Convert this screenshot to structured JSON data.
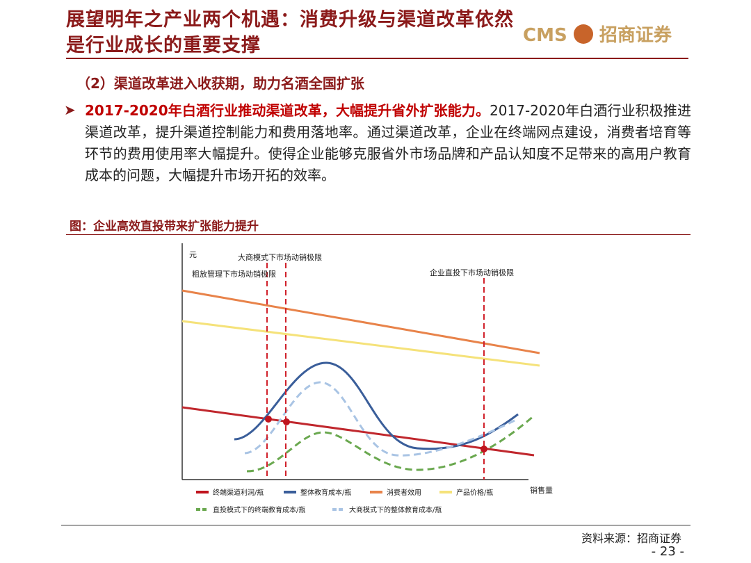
{
  "header": {
    "title_lines": [
      "展望明年之产业两个机遇：消费升级与渠道改革依然",
      "是行业成长的重要支撑"
    ],
    "logo_cms": "CMS",
    "logo_name": "招商证券"
  },
  "section": "（2）渠道改革进入收获期，助力名酒全国扩张",
  "bullet": {
    "bold": "2017-2020年白酒行业推动渠道改革，大幅提升省外扩张能力。",
    "text": "2017-2020年白酒行业积极推进渠道改革，提升渠道控制能力和费用落地率。通过渠道改革，企业在终端网点建设，消费者培育等环节的费用使用率大幅提升。使得企业能够克服省外市场品牌和产品认知度不足带来的高用户教育成本的问题，大幅提升市场开拓的效率。"
  },
  "figure": {
    "caption": "图：企业高效直投带来扩张能力提升",
    "y_label": "元",
    "x_label": "销售量",
    "annotations": [
      "大商模式下市场动销极限",
      "粗放管理下市场动销极限",
      "企业直投下市场动销极限"
    ],
    "legend": [
      "终端渠道利润/瓶",
      "整体教育成本/瓶",
      "消费者效用",
      "产品价格/瓶",
      "直投模式下的终端教育成本/瓶",
      "大商模式下的整体教育成本/瓶"
    ]
  },
  "footer": {
    "source": "资料来源：招商证券",
    "page": "- 23 -"
  }
}
